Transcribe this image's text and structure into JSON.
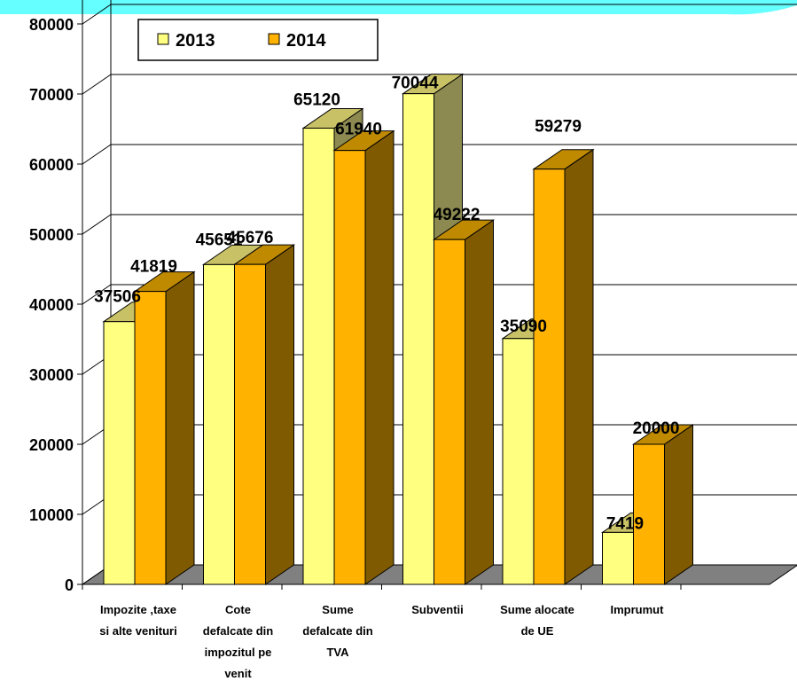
{
  "chart_data": {
    "type": "bar",
    "categories": [
      [
        "Impozite ,taxe",
        "si alte venituri"
      ],
      [
        "Cote",
        "defalcate din",
        "impozitul pe",
        "venit"
      ],
      [
        "Sume",
        "defalcate din",
        "TVA"
      ],
      [
        "Subventii"
      ],
      [
        "Sume alocate",
        "de UE"
      ],
      [
        "Imprumut"
      ]
    ],
    "series": [
      {
        "name": "2013",
        "values": [
          37506,
          45651,
          65120,
          70044,
          35090,
          7419
        ],
        "color": "#FFFF80",
        "color_side": "#8C8A50",
        "color_top": "#C9C166"
      },
      {
        "name": "2014",
        "values": [
          41819,
          45676,
          61940,
          49222,
          59279,
          20000
        ],
        "color": "#FFB300",
        "color_side": "#7F5A00",
        "color_top": "#C08A00"
      }
    ],
    "data_labels": [
      [
        "37506",
        "45651",
        "65120",
        "70044",
        "35090",
        "7419"
      ],
      [
        "41819",
        "45676",
        "61940",
        "49222",
        "59279",
        "20000"
      ]
    ],
    "y_ticks": [
      "0",
      "10000",
      "20000",
      "30000",
      "40000",
      "50000",
      "60000",
      "70000",
      "80000"
    ],
    "ylim": [
      0,
      80000
    ],
    "grid": true,
    "legend_position": "top-left",
    "floor_color": "#808080",
    "banner_color": "#66FFFF",
    "title": "",
    "xlabel": "",
    "ylabel": ""
  }
}
